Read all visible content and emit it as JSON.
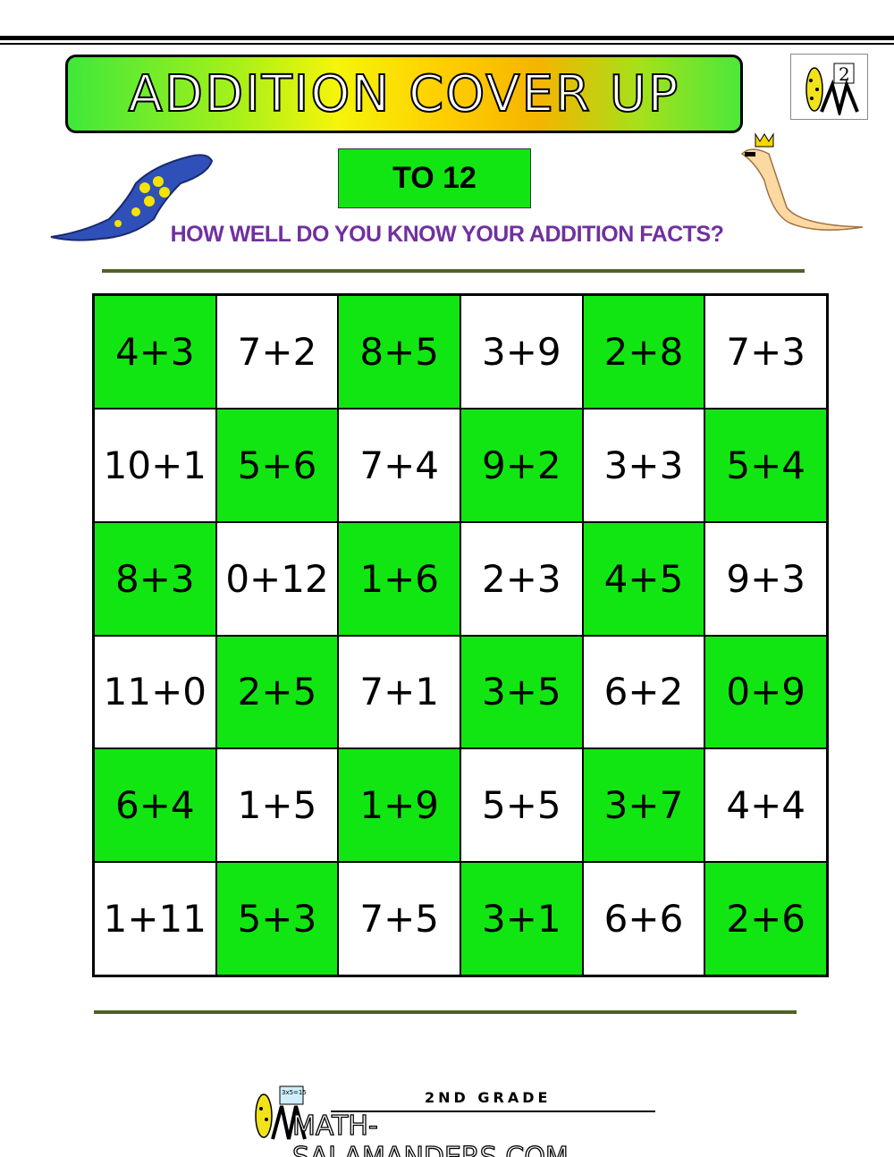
{
  "title": "ADDITION COVER UP",
  "level_label": "TO 12",
  "subtitle": "HOW WELL DO YOU KNOW YOUR ADDITION FACTS?",
  "logo_badge": "2",
  "colors": {
    "green": "#12e612",
    "purple": "#7030a0",
    "olive": "#4f6228"
  },
  "grid": [
    [
      "4+3",
      "7+2",
      "8+5",
      "3+9",
      "2+8",
      "7+3"
    ],
    [
      "10+1",
      "5+6",
      "7+4",
      "9+2",
      "3+3",
      "5+4"
    ],
    [
      "8+3",
      "0+12",
      "1+6",
      "2+3",
      "4+5",
      "9+3"
    ],
    [
      "11+0",
      "2+5",
      "7+1",
      "3+5",
      "6+2",
      "0+9"
    ],
    [
      "6+4",
      "1+5",
      "1+9",
      "5+5",
      "3+7",
      "4+4"
    ],
    [
      "1+11",
      "5+3",
      "7+5",
      "3+1",
      "6+6",
      "2+6"
    ]
  ],
  "footer": {
    "grade": "2ND GRADE",
    "site": "MATH-SALAMANDERS.COM",
    "board_text": "3x5=15"
  }
}
